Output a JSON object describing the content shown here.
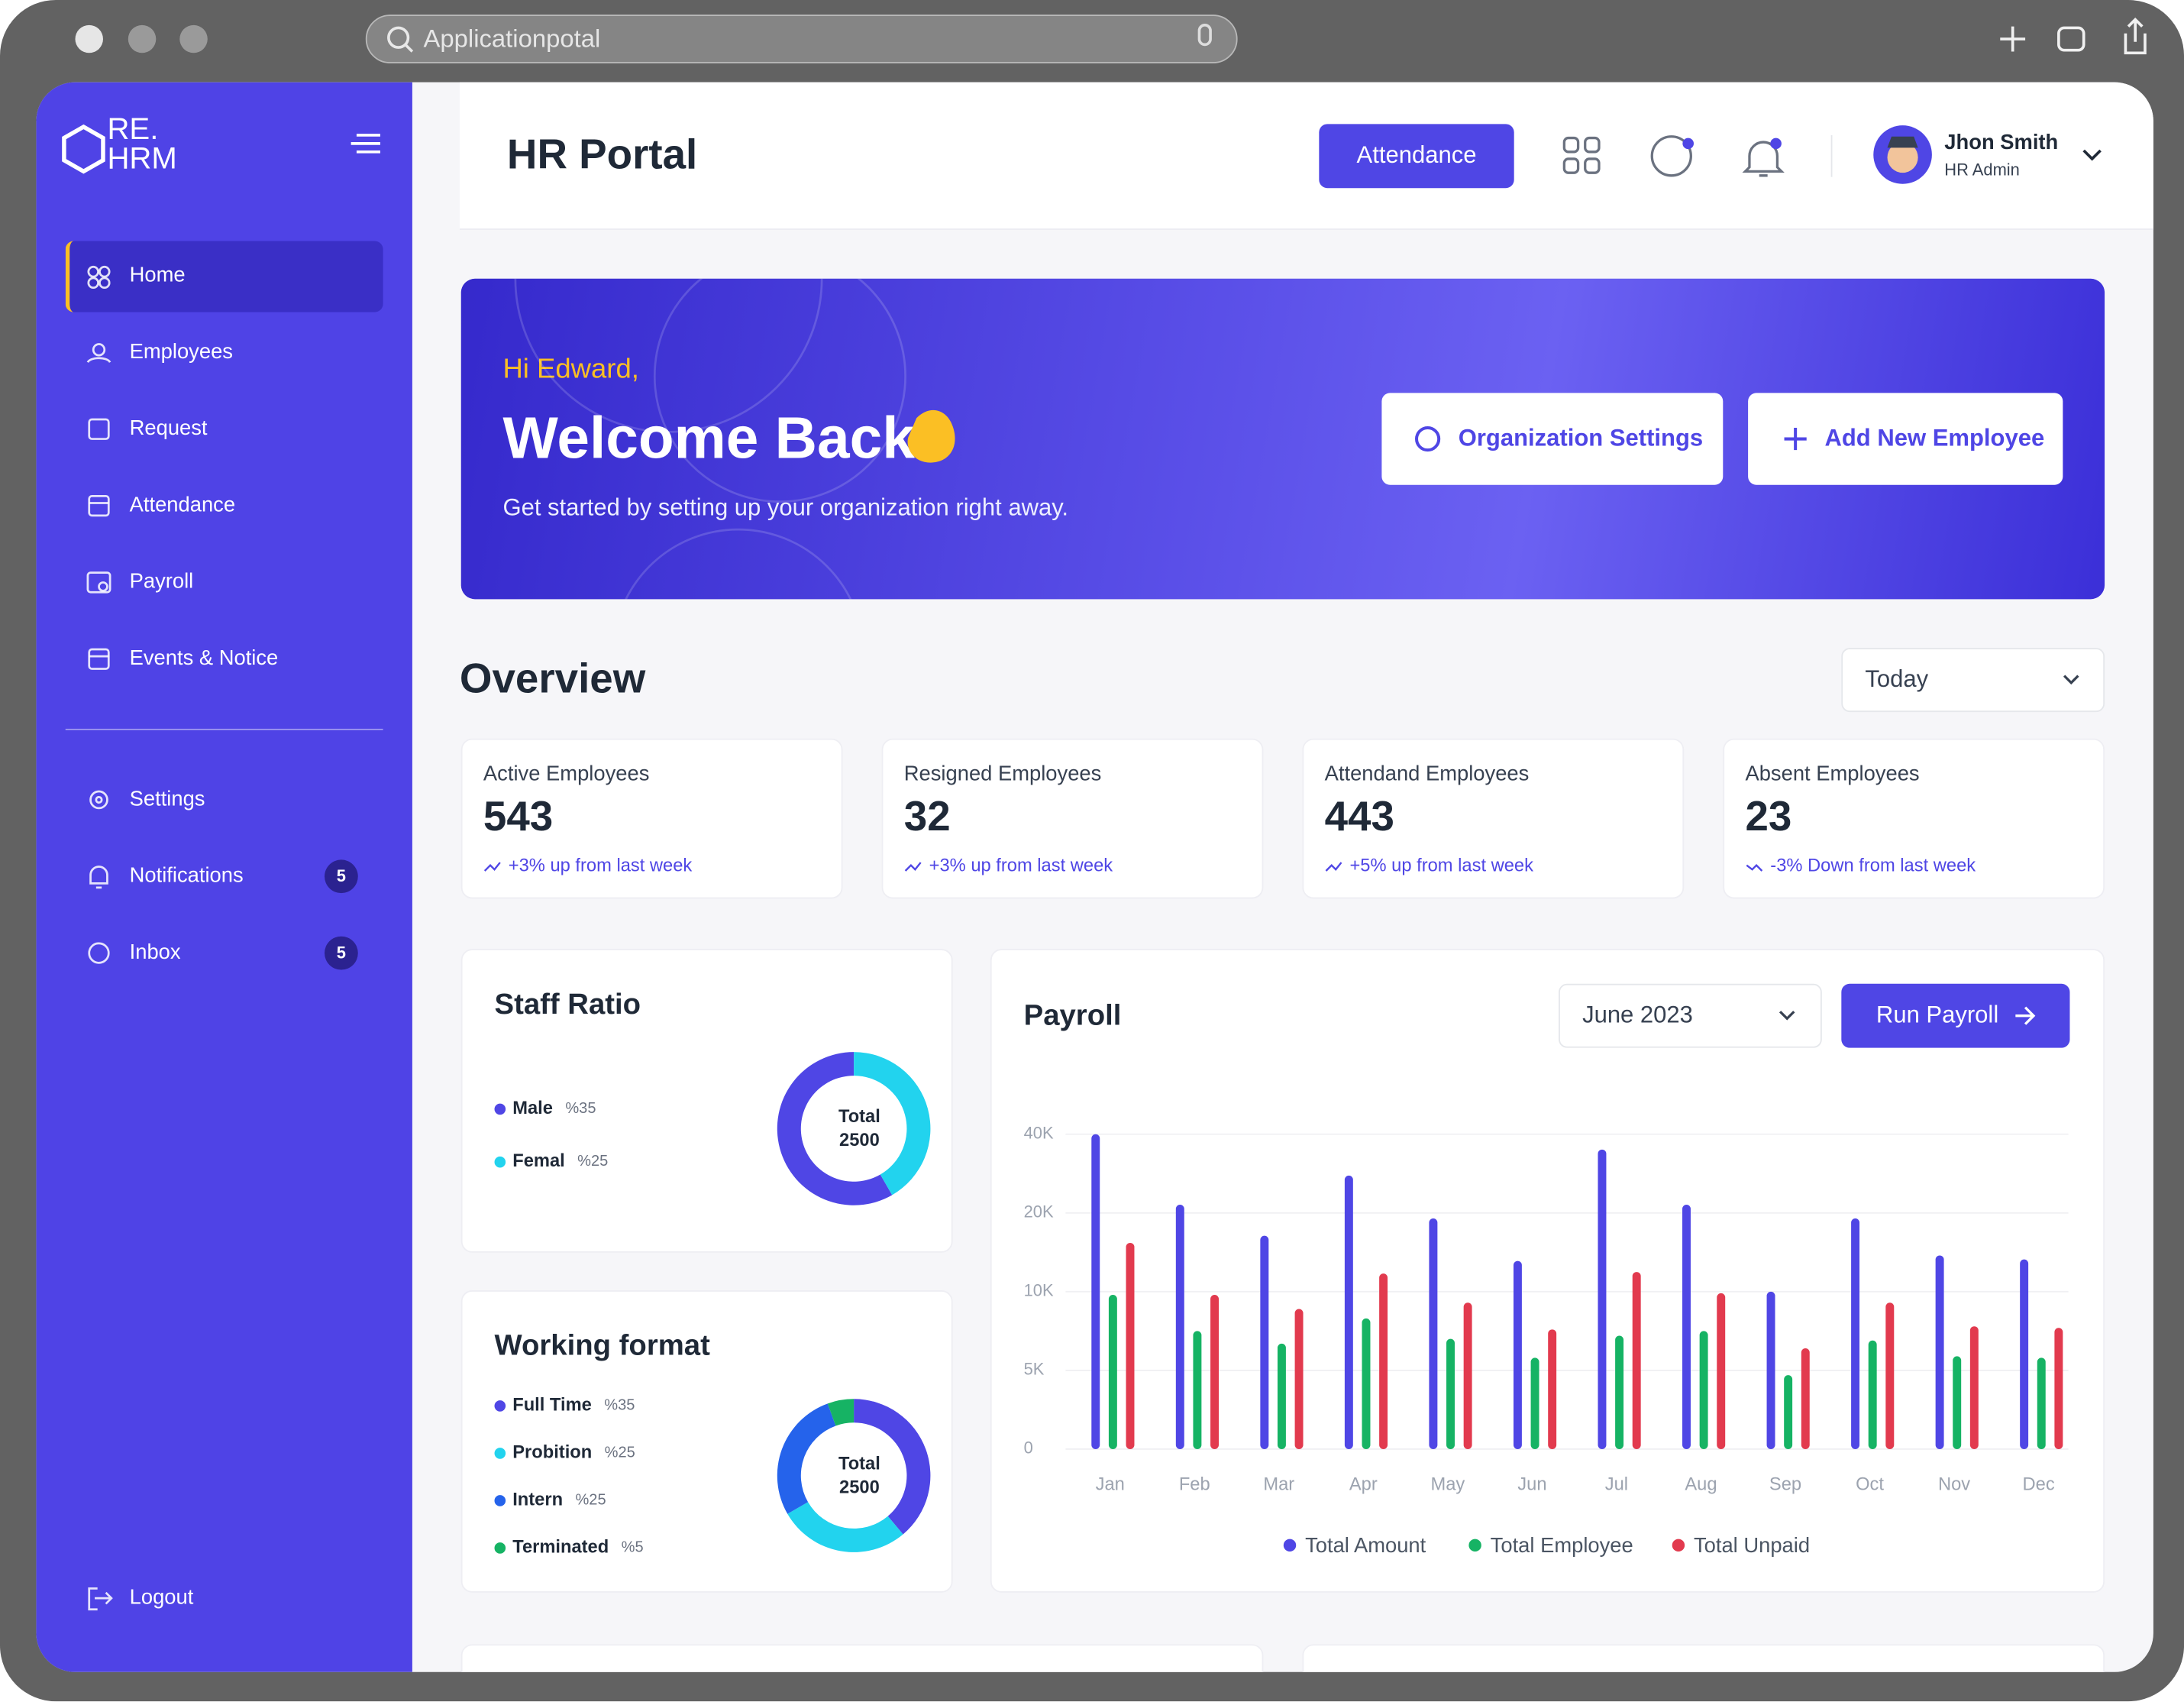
{
  "browser": {
    "address": "Applicationpotal"
  },
  "sidebar": {
    "logo": {
      "top": "RE.",
      "bottom": "HRM"
    },
    "menu": [
      "Home",
      "Employees",
      "Request",
      "Attendance",
      "Payroll",
      "Events & Notice"
    ],
    "secondary": [
      {
        "label": "Settings"
      },
      {
        "label": "Notifications",
        "badge": 5
      },
      {
        "label": "Inbox",
        "badge": 5
      }
    ],
    "logout": "Logout"
  },
  "header": {
    "title": "HR Portal",
    "button": "Attendance",
    "user": {
      "name": "Jhon Smith",
      "role": "HR Admin"
    }
  },
  "banner": {
    "greeting": "Hi Edward,",
    "title": "Welcome Back",
    "subtitle": "Get started by setting up your organization right away.",
    "actions": [
      "Organization Settings",
      "Add New Employee"
    ]
  },
  "overview": {
    "title": "Overview",
    "period": "Today",
    "cards": [
      {
        "label": "Active Employees",
        "value": 543,
        "trend": "+3% up from last week"
      },
      {
        "label": "Resigned Employees",
        "value": 32,
        "trend": "+3% up from last week"
      },
      {
        "label": "Attendand Employees",
        "value": 443,
        "trend": "+5% up from last week"
      },
      {
        "label": "Absent Employees",
        "value": 23,
        "trend": "-3% Down from last week"
      }
    ]
  },
  "chart_data": [
    {
      "type": "donut",
      "title": "Staff Ratio",
      "categories": [
        "Male",
        "Femal"
      ],
      "values": [
        35,
        25
      ],
      "value_labels": [
        "%35",
        "%25"
      ],
      "colors": [
        "#4f46e5",
        "#22d3ee"
      ],
      "center_label": "Total",
      "center_value": 2500
    },
    {
      "type": "donut",
      "title": "Working format",
      "categories": [
        "Full Time",
        "Probition",
        "Intern",
        "Terminated"
      ],
      "values": [
        35,
        25,
        25,
        5
      ],
      "value_labels": [
        "%35",
        "%25",
        "%25",
        "%5"
      ],
      "colors": [
        "#4f46e5",
        "#22d3ee",
        "#2563eb",
        "#16b364"
      ],
      "center_label": "Total",
      "center_value": 2500
    },
    {
      "type": "bar",
      "title": "Payroll",
      "period": "June 2023",
      "action": "Run Payroll",
      "categories": [
        "Jan",
        "Feb",
        "Mar",
        "Apr",
        "May",
        "Jun",
        "Jul",
        "Aug",
        "Sep",
        "Oct",
        "Nov",
        "Dec"
      ],
      "series": [
        {
          "name": "Total Amount",
          "color": "#4f46e5",
          "values": [
            40000,
            22100,
            17100,
            29500,
            19300,
            13900,
            36100,
            22100,
            10000,
            19300,
            14600,
            14100
          ]
        },
        {
          "name": "Total Employee",
          "color": "#16b364",
          "values": [
            9800,
            7500,
            6700,
            8300,
            7000,
            5800,
            7200,
            7500,
            4700,
            6900,
            5900,
            5800
          ]
        },
        {
          "name": "Total Unpaid",
          "color": "#e23a4e",
          "values": [
            16200,
            9800,
            8900,
            12300,
            9300,
            7600,
            12500,
            9900,
            6400,
            9300,
            7800,
            7700
          ]
        }
      ],
      "ylim": [
        0,
        40000
      ],
      "yticks": [
        0,
        {
          "value": 5000,
          "label": "5K"
        },
        {
          "value": 10000,
          "label": "10K"
        },
        {
          "value": 20000,
          "label": "20K"
        },
        {
          "value": 40000,
          "label": "40K"
        }
      ],
      "grid": true
    }
  ]
}
